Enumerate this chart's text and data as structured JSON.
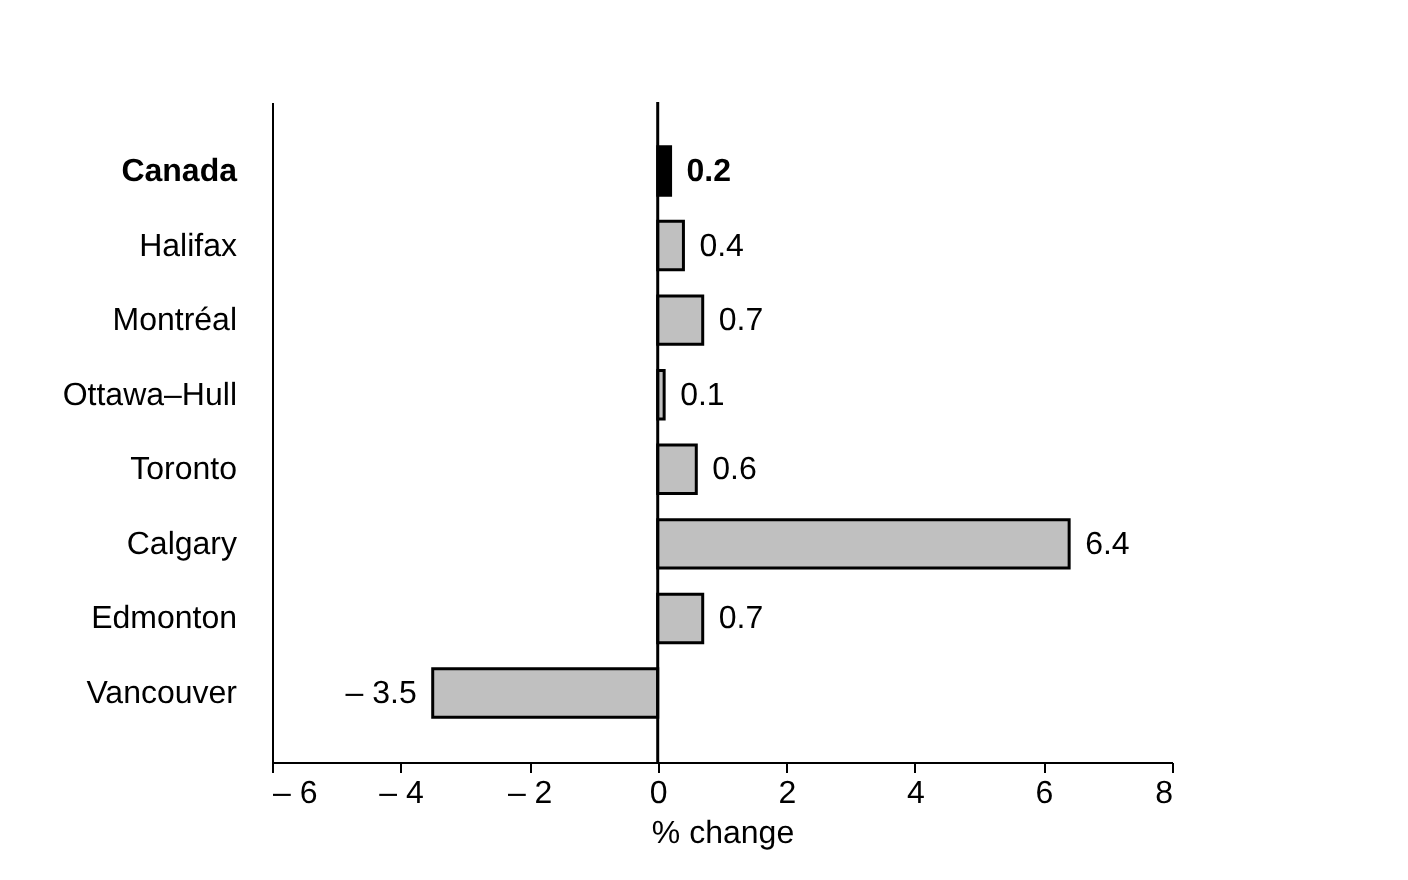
{
  "chart_data": {
    "type": "bar",
    "orientation": "horizontal",
    "xlabel": "% change",
    "categories": [
      "Canada",
      "Halifax",
      "Montréal",
      "Ottawa–Hull",
      "Toronto",
      "Calgary",
      "Edmonton",
      "Vancouver"
    ],
    "values": [
      0.2,
      0.4,
      0.7,
      0.1,
      0.6,
      6.4,
      0.7,
      -3.5
    ],
    "colors": [
      "#000000",
      "#c0c0c0",
      "#c0c0c0",
      "#c0c0c0",
      "#c0c0c0",
      "#c0c0c0",
      "#c0c0c0",
      "#c0c0c0"
    ],
    "value_labels": [
      "0.2",
      "0.4",
      "0.7",
      "0.1",
      "0.6",
      "6.4",
      "0.7",
      "– 3.5"
    ],
    "xlim": [
      -6,
      8
    ],
    "xticks": [
      {
        "value": -6,
        "label": "– 6"
      },
      {
        "value": -4,
        "label": "– 4"
      },
      {
        "value": -2,
        "label": "– 2"
      },
      0,
      2,
      4,
      6,
      8
    ],
    "ref_lines": [
      {
        "axis": "x",
        "value": 0,
        "color": "#000000"
      }
    ],
    "grid": false
  }
}
